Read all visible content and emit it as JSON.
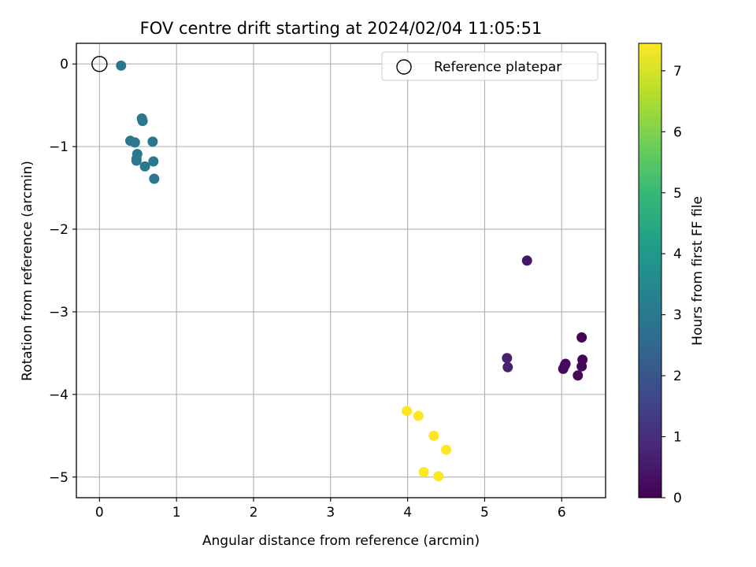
{
  "chart_data": {
    "type": "scatter",
    "title": "FOV centre drift starting at 2024/02/04 11:05:51",
    "xlabel": "Angular distance from reference (arcmin)",
    "ylabel": "Rotation from reference (arcmin)",
    "xlim": [
      -0.3,
      6.57
    ],
    "ylim": [
      -5.25,
      0.25
    ],
    "xticks": [
      0,
      1,
      2,
      3,
      4,
      5,
      6
    ],
    "yticks": [
      0,
      -1,
      -2,
      -3,
      -4,
      -5
    ],
    "xtick_labels": [
      "0",
      "1",
      "2",
      "3",
      "4",
      "5",
      "6"
    ],
    "ytick_labels": [
      "0",
      "−1",
      "−2",
      "−3",
      "−4",
      "−5"
    ],
    "grid": true,
    "legend": {
      "position": "top-right",
      "entries": [
        "Reference platepar"
      ]
    },
    "reference_point": {
      "label": "Reference platepar",
      "x": 0,
      "y": 0,
      "marker": "open-circle"
    },
    "colorbar": {
      "label": "Hours from first FF file",
      "range": [
        0,
        7.45
      ],
      "ticks": [
        0,
        1,
        2,
        3,
        4,
        5,
        6,
        7
      ],
      "tick_labels": [
        "0",
        "1",
        "2",
        "3",
        "4",
        "5",
        "6",
        "7"
      ],
      "colormap": [
        "#440154",
        "#482878",
        "#3e4989",
        "#31688e",
        "#26828e",
        "#1f9e89",
        "#35b779",
        "#6ece58",
        "#b5de2b",
        "#fde725"
      ]
    },
    "points": [
      {
        "x": 6.26,
        "y": -3.31,
        "hours": 0.05
      },
      {
        "x": 6.27,
        "y": -3.58,
        "hours": 0.1
      },
      {
        "x": 6.26,
        "y": -3.66,
        "hours": 0.12
      },
      {
        "x": 6.21,
        "y": -3.77,
        "hours": 0.15
      },
      {
        "x": 6.05,
        "y": -3.63,
        "hours": 0.18
      },
      {
        "x": 6.04,
        "y": -3.65,
        "hours": 0.2
      },
      {
        "x": 6.02,
        "y": -3.69,
        "hours": 0.22
      },
      {
        "x": 5.55,
        "y": -2.38,
        "hours": 0.45
      },
      {
        "x": 5.29,
        "y": -3.56,
        "hours": 0.65
      },
      {
        "x": 5.3,
        "y": -3.67,
        "hours": 0.7
      },
      {
        "x": 0.28,
        "y": -0.02,
        "hours": 3.0
      },
      {
        "x": 0.55,
        "y": -0.66,
        "hours": 3.0
      },
      {
        "x": 0.56,
        "y": -0.69,
        "hours": 3.0
      },
      {
        "x": 0.4,
        "y": -0.93,
        "hours": 3.0
      },
      {
        "x": 0.46,
        "y": -0.95,
        "hours": 3.0
      },
      {
        "x": 0.69,
        "y": -0.94,
        "hours": 3.0
      },
      {
        "x": 0.49,
        "y": -1.09,
        "hours": 3.0
      },
      {
        "x": 0.48,
        "y": -1.15,
        "hours": 3.0
      },
      {
        "x": 0.48,
        "y": -1.17,
        "hours": 3.0
      },
      {
        "x": 0.7,
        "y": -1.18,
        "hours": 3.0
      },
      {
        "x": 0.59,
        "y": -1.24,
        "hours": 3.0
      },
      {
        "x": 0.71,
        "y": -1.39,
        "hours": 3.0
      },
      {
        "x": 3.99,
        "y": -4.2,
        "hours": 7.45
      },
      {
        "x": 4.14,
        "y": -4.26,
        "hours": 7.45
      },
      {
        "x": 4.34,
        "y": -4.5,
        "hours": 7.45
      },
      {
        "x": 4.5,
        "y": -4.67,
        "hours": 7.45
      },
      {
        "x": 4.21,
        "y": -4.94,
        "hours": 7.45
      },
      {
        "x": 4.4,
        "y": -4.99,
        "hours": 7.45
      }
    ]
  }
}
